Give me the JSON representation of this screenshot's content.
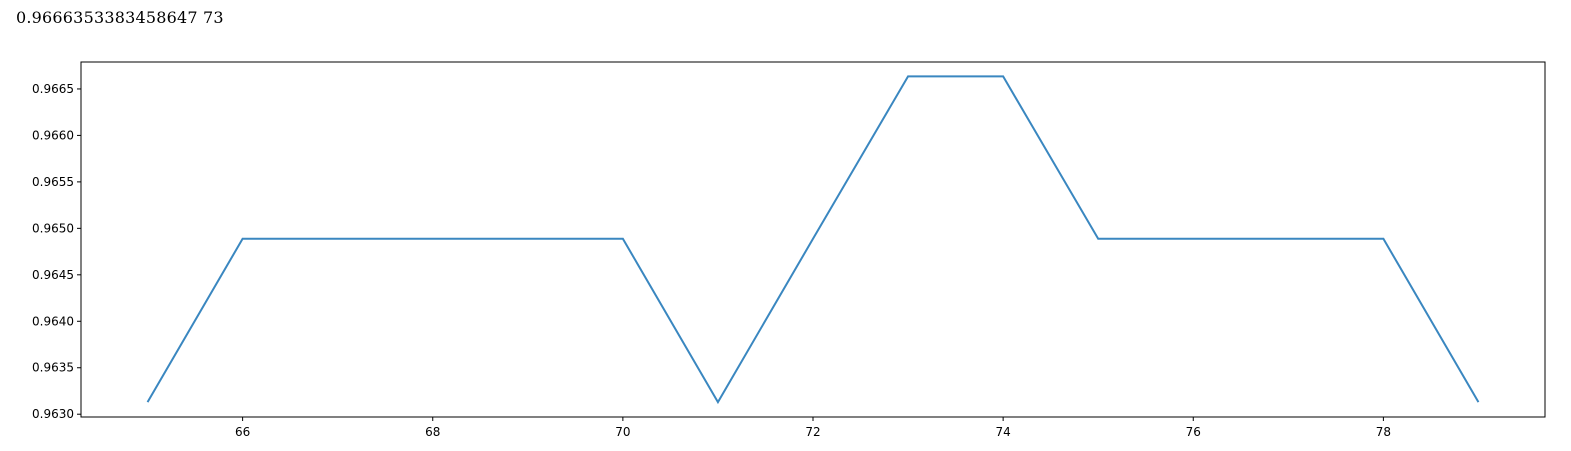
{
  "output": {
    "text": "0.9666353383458647 73"
  },
  "chart_data": {
    "type": "line",
    "x": [
      65,
      66,
      67,
      68,
      69,
      70,
      71,
      72,
      73,
      74,
      75,
      76,
      77,
      78,
      79
    ],
    "series": [
      {
        "values": [
          0.96313,
          0.964888,
          0.964888,
          0.964888,
          0.964888,
          0.964888,
          0.96313,
          0.964888,
          0.966635,
          0.966635,
          0.964888,
          0.964888,
          0.964888,
          0.964888,
          0.96313
        ]
      }
    ],
    "xlim": [
      64.3,
      79.7
    ],
    "ylim": [
      0.96297,
      0.96679
    ],
    "xticks": [
      66,
      68,
      70,
      72,
      74,
      76,
      78
    ],
    "xtick_labels": [
      "66",
      "68",
      "70",
      "72",
      "74",
      "76",
      "78"
    ],
    "yticks": [
      0.963,
      0.9635,
      0.964,
      0.9645,
      0.965,
      0.9655,
      0.966,
      0.9665
    ],
    "ytick_labels": [
      "0.9630",
      "0.9635",
      "0.9640",
      "0.9645",
      "0.9650",
      "0.9655",
      "0.9660",
      "0.9665"
    ],
    "grid": false,
    "line_color": "#3a87c0"
  }
}
